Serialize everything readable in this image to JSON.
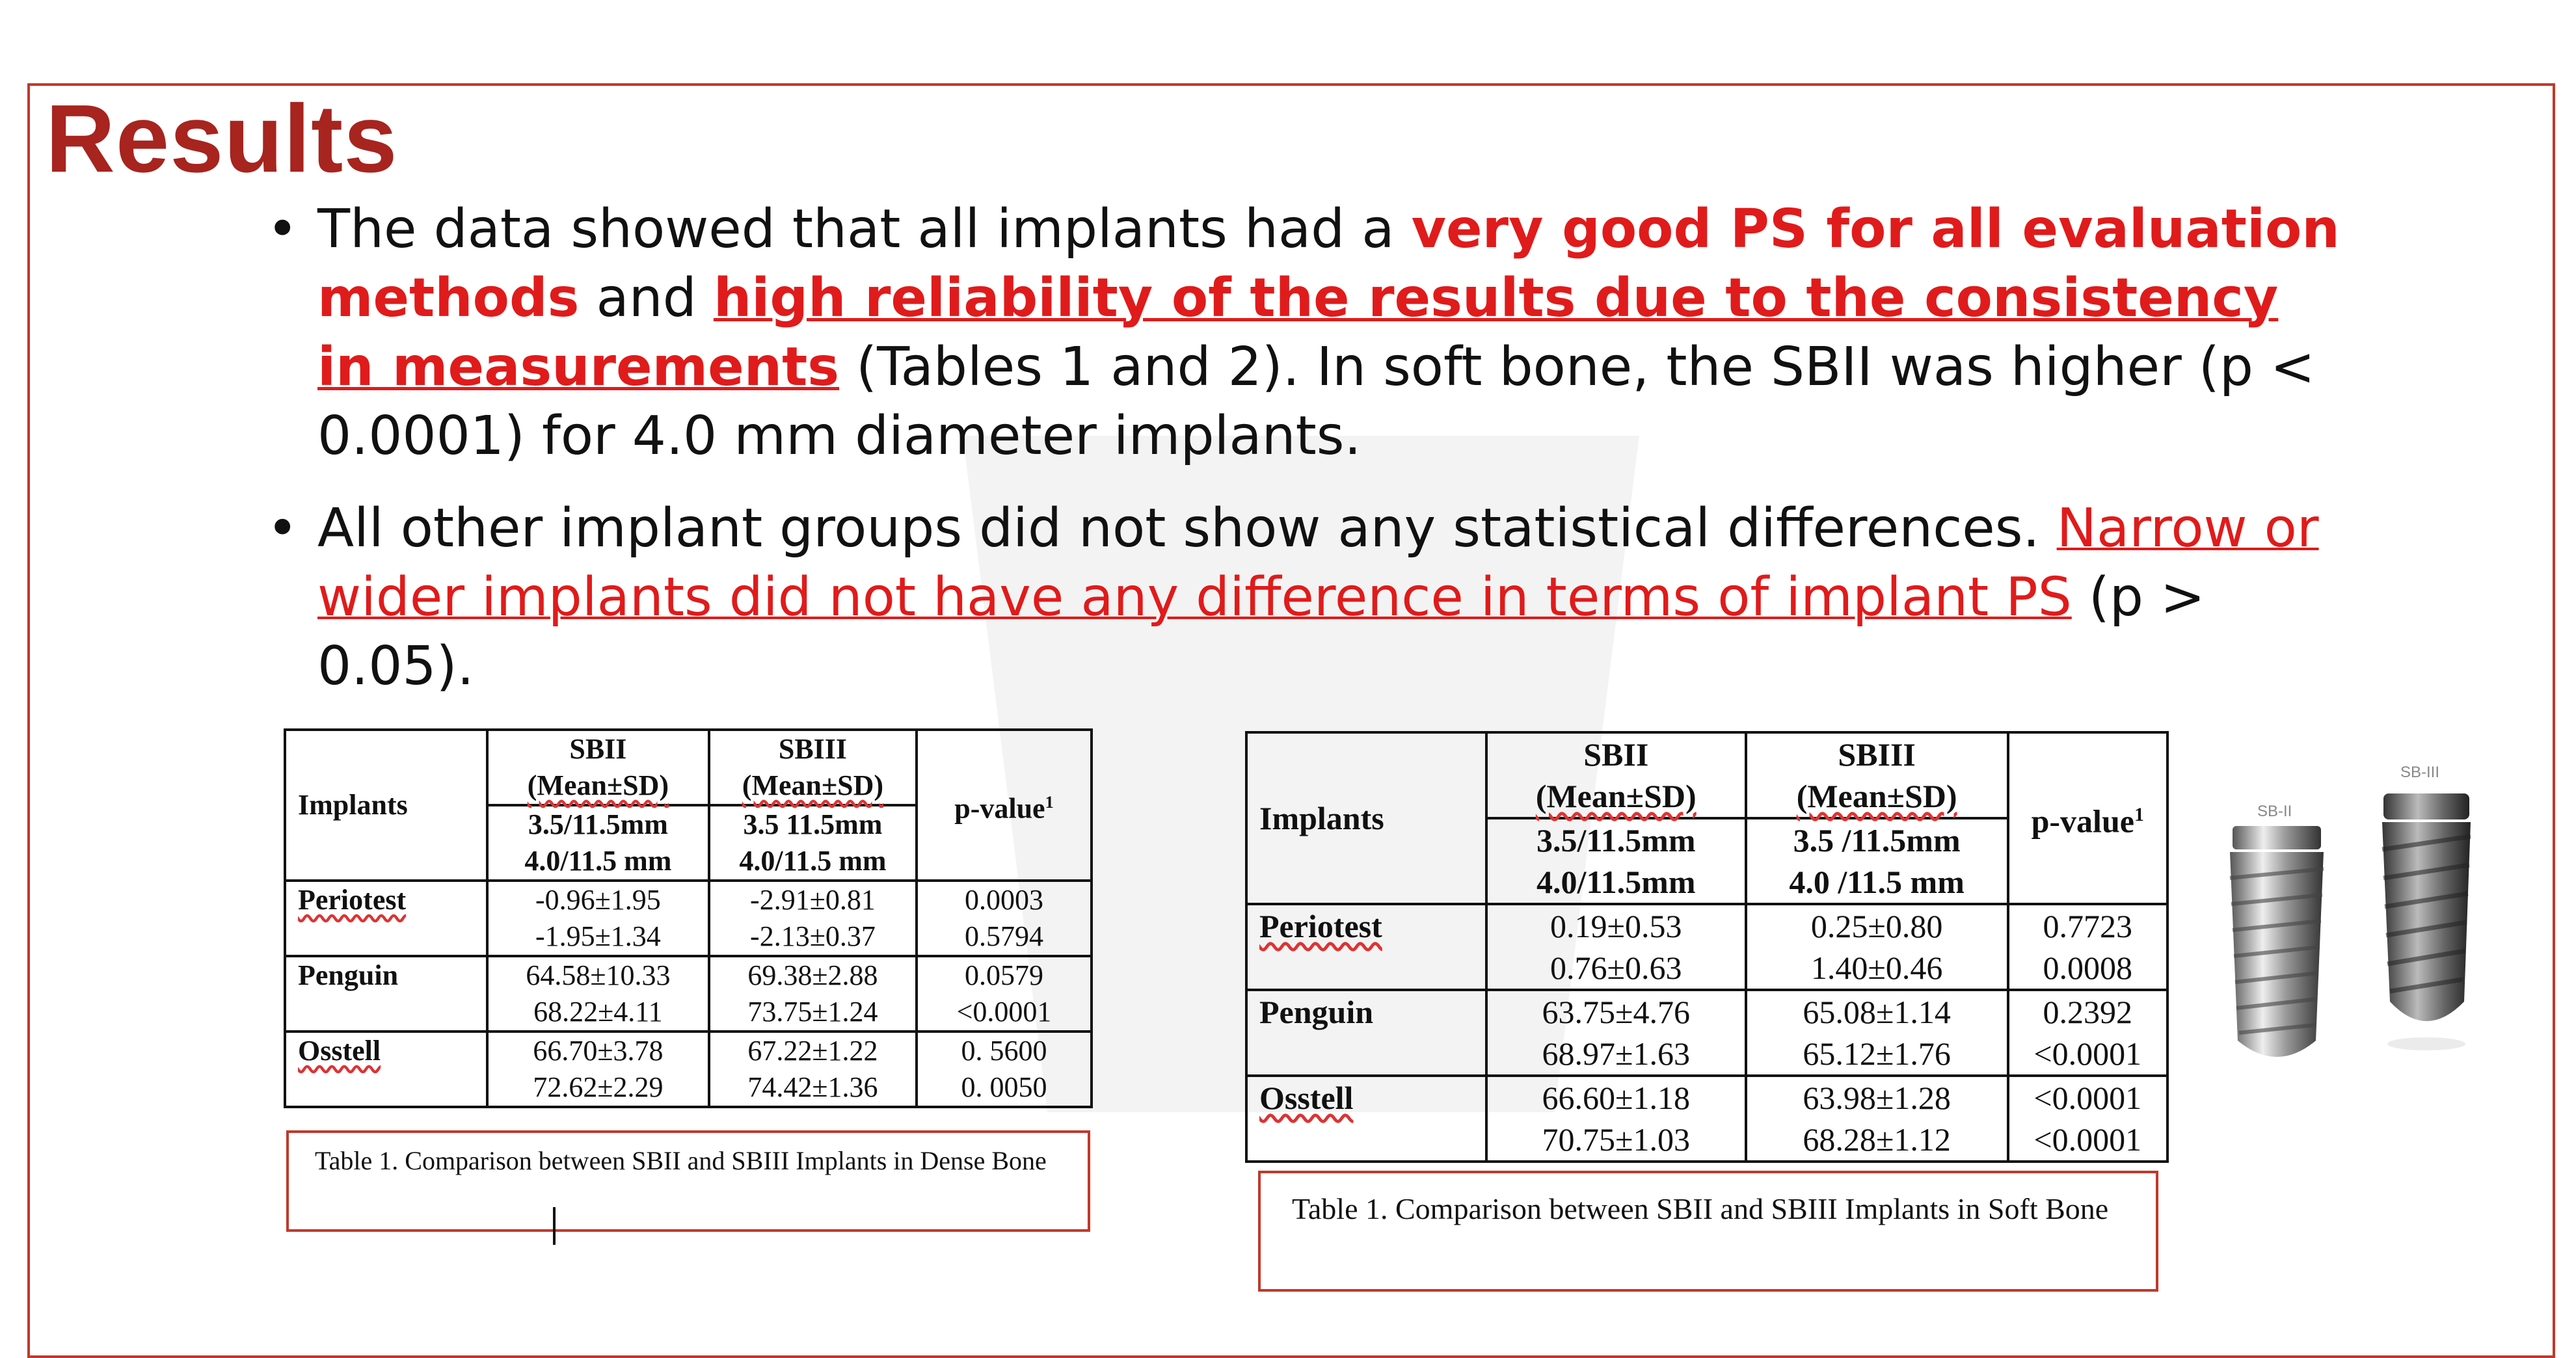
{
  "title": "Results",
  "bullet_marker": "•",
  "bullet1": {
    "t1": "The data showed that all implants had a ",
    "t2": "very good PS for all evaluation methods",
    "t3": " and ",
    "t4": "high reliability of the results due to the consistency in measurements",
    "t5": " (Tables 1 and 2). In soft bone, the SBII was higher (p < 0.0001) for 4.0 mm diameter implants."
  },
  "bullet2": {
    "t1": "All other implant groups did not show any statistical differences. ",
    "t2": "Narrow or wider implants did not have any difference in terms of implant PS",
    "t3": " (p > 0.05)."
  },
  "table1": {
    "header_implants": "Implants",
    "header_sbii_1": "SBII",
    "header_sbii_2": "(Mean±SD)",
    "header_sbiii_1": "SBIII",
    "header_sbiii_2": "(Mean±SD)",
    "sub_sbii_1": "3.5/11.5mm",
    "sub_sbii_2": "4.0/11.5 mm",
    "sub_sbiii_1": "3.5 11.5mm",
    "sub_sbiii_2": "4.0/11.5 mm",
    "header_p": "p-value",
    "header_p_sup": "1",
    "rows": [
      {
        "name": "Periotest",
        "sbii": [
          "-0.96±1.95",
          "-1.95±1.34"
        ],
        "sbiii": [
          "-2.91±0.81",
          "-2.13±0.37"
        ],
        "p": [
          "0.0003",
          "0.5794"
        ]
      },
      {
        "name": "Penguin",
        "sbii": [
          "64.58±10.33",
          "68.22±4.11"
        ],
        "sbiii": [
          "69.38±2.88",
          "73.75±1.24"
        ],
        "p": [
          "0.0579",
          "<0.0001"
        ]
      },
      {
        "name": "Osstell",
        "sbii": [
          "66.70±3.78",
          "72.62±2.29"
        ],
        "sbiii": [
          "67.22±1.22",
          "74.42±1.36"
        ],
        "p": [
          "0. 5600",
          "0. 0050"
        ]
      }
    ],
    "caption": "Table 1. Comparison between SBII and SBIII Implants in Dense Bone"
  },
  "table2": {
    "header_implants": "Implants",
    "header_sbii_1": "SBII",
    "header_sbii_2": "(Mean±SD)",
    "header_sbiii_1": "SBIII",
    "header_sbiii_2": "(Mean±SD)",
    "sub_sbii_1": "3.5/11.5mm",
    "sub_sbii_2": "4.0/11.5mm",
    "sub_sbiii_1": "3.5 /11.5mm",
    "sub_sbiii_2": "4.0 /11.5 mm",
    "header_p": "p-value",
    "header_p_sup": "1",
    "rows": [
      {
        "name": "Periotest",
        "sbii": [
          "0.19±0.53",
          "0.76±0.63"
        ],
        "sbiii": [
          "0.25±0.80",
          "1.40±0.46"
        ],
        "p": [
          "0.7723",
          "0.0008"
        ]
      },
      {
        "name": "Penguin",
        "sbii": [
          "63.75±4.76",
          "68.97±1.63"
        ],
        "sbiii": [
          "65.08±1.14",
          "65.12±1.76"
        ],
        "p": [
          "0.2392",
          "<0.0001"
        ]
      },
      {
        "name": "Osstell",
        "sbii": [
          "66.60±1.18",
          "70.75±1.03"
        ],
        "sbiii": [
          "63.98±1.28",
          "68.28±1.12"
        ],
        "p": [
          "<0.0001",
          "<0.0001"
        ]
      }
    ],
    "caption": "Table 1. Comparison between SBII and SBIII Implants in Soft Bone"
  },
  "implant_labels": {
    "sbii": "SB-II",
    "sbiii": "SB-III"
  }
}
